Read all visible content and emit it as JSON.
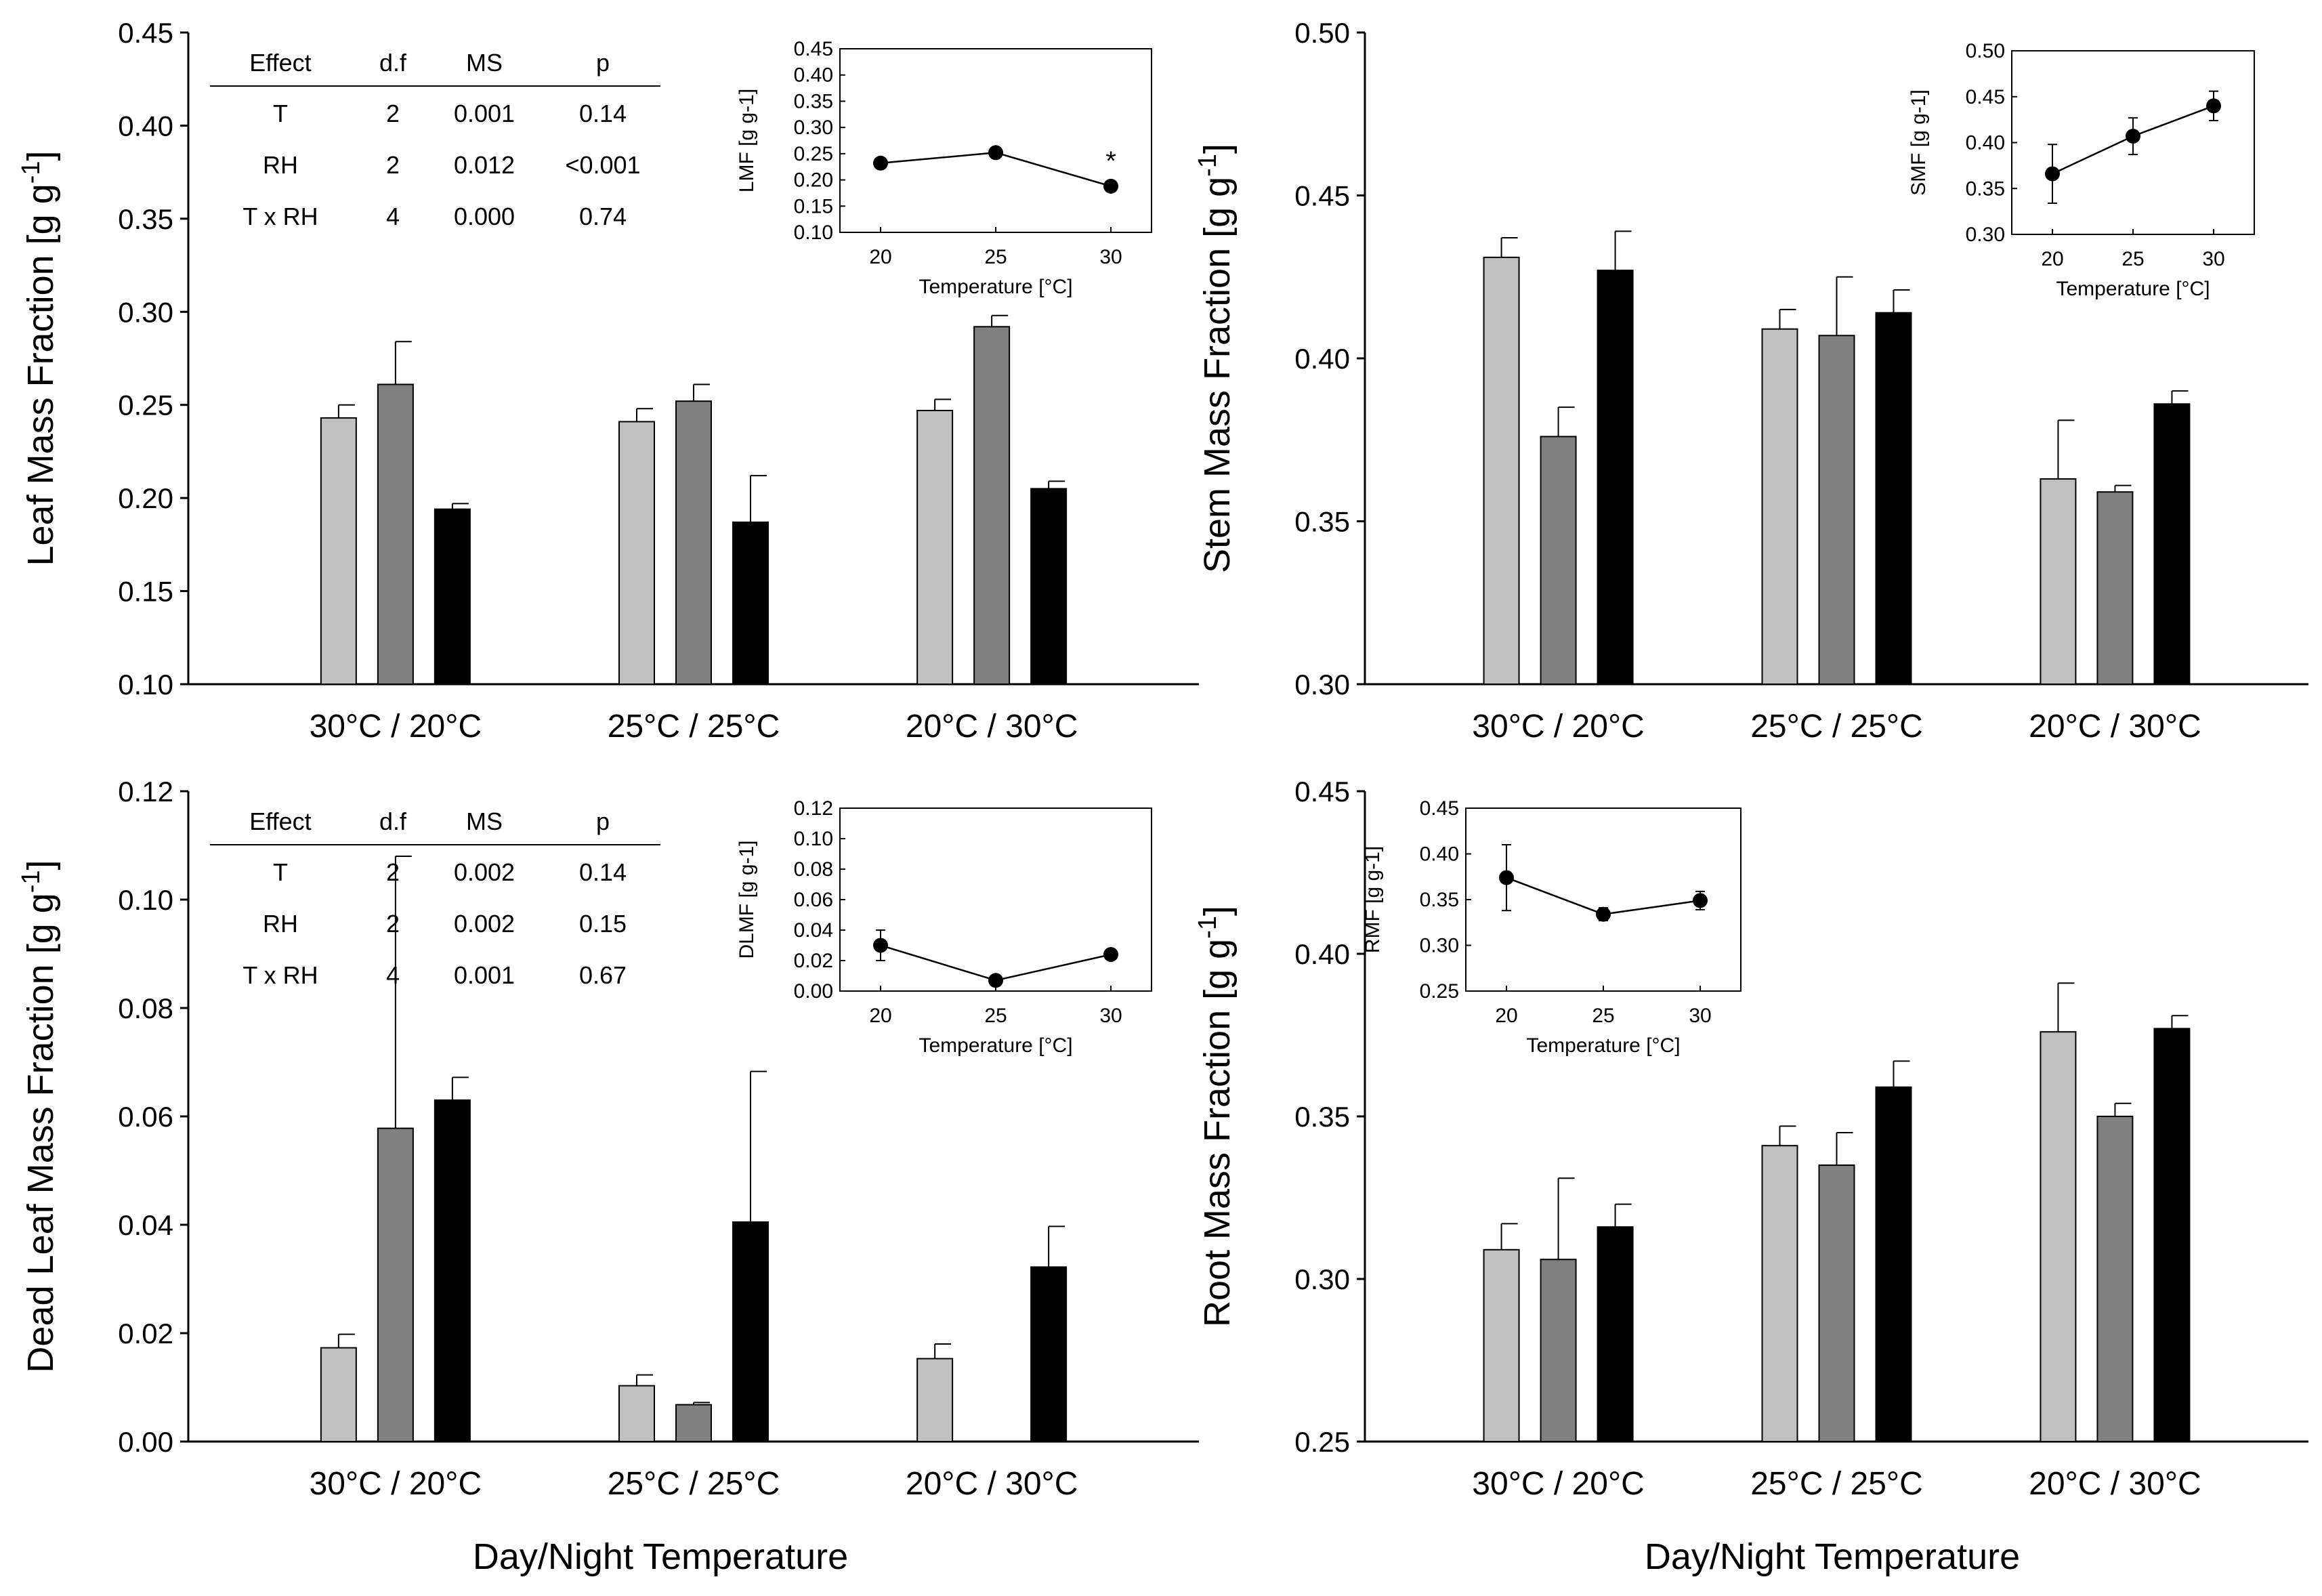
{
  "figure": {
    "xlabel_left": "Day/Night Temperature",
    "xlabel_right": "Day/Night Temperature"
  },
  "colors": {
    "light": "#c0c0c0",
    "medium": "#808080",
    "dark": "#000000"
  },
  "chart_data": [
    {
      "type": "bar",
      "id": "lmf",
      "title": "",
      "ylabel": "Leaf Mass Fraction [g g-1]",
      "ylabel_main": "Leaf Mass Fraction [g g",
      "ylabel_sup": "-1",
      "ylabel_end": "]",
      "ylim": [
        0.1,
        0.45
      ],
      "yticks": [
        "0.10",
        "0.15",
        "0.20",
        "0.25",
        "0.30",
        "0.35",
        "0.40",
        "0.45"
      ],
      "categories": [
        "30°C / 20°C",
        "25°C / 25°C",
        "20°C / 30°C"
      ],
      "series": [
        {
          "name": "light",
          "values": [
            0.243,
            0.241,
            0.247
          ],
          "errors": [
            0.007,
            0.007,
            0.006
          ]
        },
        {
          "name": "medium",
          "values": [
            0.261,
            0.252,
            0.292
          ],
          "errors": [
            0.023,
            0.009,
            0.006
          ]
        },
        {
          "name": "dark",
          "values": [
            0.194,
            0.187,
            0.205
          ],
          "errors": [
            0.003,
            0.025,
            0.004
          ]
        }
      ],
      "stats_table": {
        "headers": [
          "Effect",
          "d.f",
          "MS",
          "p"
        ],
        "rows": [
          [
            "T",
            "2",
            "0.001",
            "0.14"
          ],
          [
            "RH",
            "2",
            "0.012",
            "<0.001"
          ],
          [
            "T x RH",
            "4",
            "0.000",
            "0.74"
          ]
        ]
      },
      "inset": {
        "type": "line",
        "ylabel": "LMF [g g-1]",
        "xlabel": "Temperature [°C]",
        "x": [
          20,
          25,
          30
        ],
        "y": [
          0.232,
          0.252,
          0.188
        ],
        "errors": [
          0.004,
          0.004,
          0.003
        ],
        "ylim": [
          0.1,
          0.45
        ],
        "yticks": [
          "0.10",
          "0.15",
          "0.20",
          "0.25",
          "0.30",
          "0.35",
          "0.40",
          "0.45"
        ],
        "xticks": [
          "20",
          "25",
          "30"
        ],
        "annotation": "*"
      }
    },
    {
      "type": "bar",
      "id": "smf",
      "title": "",
      "ylabel": "Stem Mass Fraction [g g-1]",
      "ylabel_main": "Stem Mass Fraction [g g",
      "ylabel_sup": "-1",
      "ylabel_end": "]",
      "ylim": [
        0.3,
        0.5
      ],
      "yticks": [
        "0.30",
        "0.35",
        "0.40",
        "0.45",
        "0.50"
      ],
      "categories": [
        "30°C / 20°C",
        "25°C / 25°C",
        "20°C / 30°C"
      ],
      "series": [
        {
          "name": "light",
          "values": [
            0.431,
            0.409,
            0.363
          ],
          "errors": [
            0.006,
            0.006,
            0.018
          ]
        },
        {
          "name": "medium",
          "values": [
            0.376,
            0.407,
            0.359
          ],
          "errors": [
            0.009,
            0.018,
            0.002
          ]
        },
        {
          "name": "dark",
          "values": [
            0.427,
            0.414,
            0.386
          ],
          "errors": [
            0.012,
            0.007,
            0.004
          ]
        }
      ],
      "inset": {
        "type": "line",
        "ylabel": "SMF [g g-1]",
        "xlabel": "Temperature [°C]",
        "x": [
          20,
          25,
          30
        ],
        "y": [
          0.366,
          0.407,
          0.44
        ],
        "errors": [
          0.032,
          0.02,
          0.016
        ],
        "ylim": [
          0.3,
          0.5
        ],
        "yticks": [
          "0.30",
          "0.35",
          "0.40",
          "0.45",
          "0.50"
        ],
        "xticks": [
          "20",
          "25",
          "30"
        ]
      }
    },
    {
      "type": "bar",
      "id": "dlmf",
      "title": "",
      "ylabel": "Dead Leaf Mass Fraction [g g-1]",
      "ylabel_main": "Dead Leaf Mass Fraction [g g",
      "ylabel_sup": "-1",
      "ylabel_end": "]",
      "ylim": [
        0.0,
        0.12
      ],
      "yticks": [
        "0.00",
        "0.02",
        "0.04",
        "0.06",
        "0.08",
        "0.10",
        "0.12"
      ],
      "categories": [
        "30°C / 20°C",
        "25°C / 25°C",
        "20°C / 30°C"
      ],
      "series": [
        {
          "name": "light",
          "values": [
            0.0173,
            0.0103,
            0.0153
          ],
          "errors": [
            0.0025,
            0.002,
            0.0027
          ]
        },
        {
          "name": "medium",
          "values": [
            0.0578,
            0.0068,
            0.0
          ],
          "errors": [
            0.0502,
            0.0004,
            0.0
          ]
        },
        {
          "name": "dark",
          "values": [
            0.063,
            0.0405,
            0.0322
          ],
          "errors": [
            0.0042,
            0.0278,
            0.0075
          ]
        }
      ],
      "stats_table": {
        "headers": [
          "Effect",
          "d.f",
          "MS",
          "p"
        ],
        "rows": [
          [
            "T",
            "2",
            "0.002",
            "0.14"
          ],
          [
            "RH",
            "2",
            "0.002",
            "0.15"
          ],
          [
            "T x RH",
            "4",
            "0.001",
            "0.67"
          ]
        ]
      },
      "inset": {
        "type": "line",
        "ylabel": "DLMF [g g-1]",
        "xlabel": "Temperature [°C]",
        "x": [
          20,
          25,
          30
        ],
        "y": [
          0.03,
          0.007,
          0.024
        ],
        "errors": [
          0.01,
          0.002,
          0.003
        ],
        "ylim": [
          0.0,
          0.12
        ],
        "yticks": [
          "0.00",
          "0.02",
          "0.04",
          "0.06",
          "0.08",
          "0.10",
          "0.12"
        ],
        "xticks": [
          "20",
          "25",
          "30"
        ]
      }
    },
    {
      "type": "bar",
      "id": "rmf",
      "title": "",
      "ylabel": "Root Mass Fraction [g g-1]",
      "ylabel_main": "Root Mass Fraction [g g",
      "ylabel_sup": "-1",
      "ylabel_end": "]",
      "ylim": [
        0.25,
        0.45
      ],
      "yticks": [
        "0.25",
        "0.30",
        "0.35",
        "0.40",
        "0.45"
      ],
      "categories": [
        "30°C / 20°C",
        "25°C / 25°C",
        "20°C / 30°C"
      ],
      "series": [
        {
          "name": "light",
          "values": [
            0.309,
            0.341,
            0.376
          ],
          "errors": [
            0.008,
            0.006,
            0.015
          ]
        },
        {
          "name": "medium",
          "values": [
            0.306,
            0.335,
            0.35
          ],
          "errors": [
            0.025,
            0.01,
            0.004
          ]
        },
        {
          "name": "dark",
          "values": [
            0.316,
            0.359,
            0.377
          ],
          "errors": [
            0.007,
            0.008,
            0.004
          ]
        }
      ],
      "inset": {
        "type": "line",
        "ylabel": "RMF [g g-1]",
        "xlabel": "Temperature [°C]",
        "x": [
          20,
          25,
          30
        ],
        "y": [
          0.374,
          0.334,
          0.349
        ],
        "errors": [
          0.036,
          0.007,
          0.01
        ],
        "ylim": [
          0.25,
          0.45
        ],
        "yticks": [
          "0.25",
          "0.30",
          "0.35",
          "0.40",
          "0.45"
        ],
        "xticks": [
          "20",
          "25",
          "30"
        ]
      }
    }
  ]
}
